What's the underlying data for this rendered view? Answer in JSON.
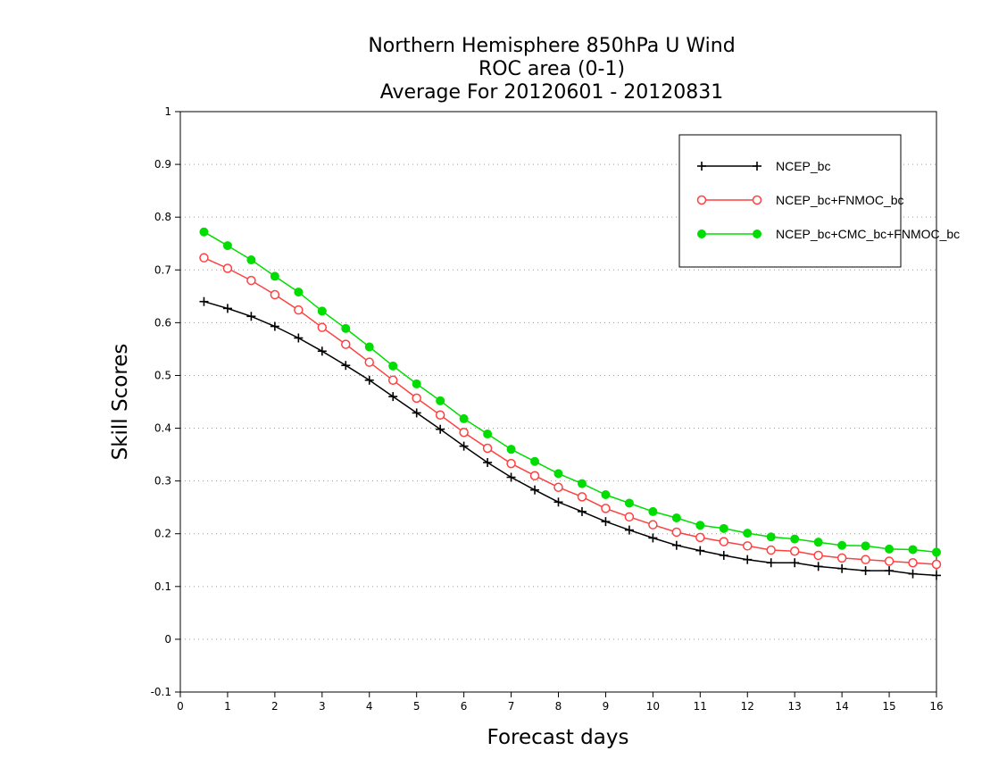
{
  "chart_data": {
    "type": "line",
    "title_lines": [
      "Northern Hemisphere 850hPa U Wind",
      "ROC area (0-1)",
      "Average For 20120601 - 20120831"
    ],
    "xlabel": "Forecast days",
    "ylabel": "Skill Scores",
    "xlim": [
      0,
      16
    ],
    "ylim": [
      -0.1,
      1
    ],
    "x_ticks": [
      "0",
      "1",
      "2",
      "3",
      "4",
      "5",
      "6",
      "7",
      "8",
      "9",
      "10",
      "11",
      "12",
      "13",
      "14",
      "15",
      "16"
    ],
    "y_ticks": [
      "-0.1",
      "0",
      "0.1",
      "0.2",
      "0.3",
      "0.4",
      "0.5",
      "0.6",
      "0.7",
      "0.8",
      "0.9",
      "1"
    ],
    "grid": "horizontal dotted",
    "legend_position": "top-right",
    "x": [
      0.5,
      1,
      1.5,
      2,
      2.5,
      3,
      3.5,
      4,
      4.5,
      5,
      5.5,
      6,
      6.5,
      7,
      7.5,
      8,
      8.5,
      9,
      9.5,
      10,
      10.5,
      11,
      11.5,
      12,
      12.5,
      13,
      13.5,
      14,
      14.5,
      15,
      15.5,
      16
    ],
    "series": [
      {
        "name": "NCEP_bc",
        "color": "#000000",
        "marker": "plus",
        "values": [
          0.64,
          0.627,
          0.612,
          0.593,
          0.571,
          0.546,
          0.519,
          0.491,
          0.46,
          0.429,
          0.398,
          0.366,
          0.335,
          0.307,
          0.283,
          0.26,
          0.242,
          0.223,
          0.207,
          0.192,
          0.178,
          0.168,
          0.159,
          0.151,
          0.145,
          0.145,
          0.138,
          0.134,
          0.13,
          0.13,
          0.124,
          0.121
        ]
      },
      {
        "name": "NCEP_bc+FNMOC_bc",
        "color": "#ff4040",
        "marker": "open-circle",
        "values": [
          0.723,
          0.703,
          0.68,
          0.653,
          0.624,
          0.591,
          0.559,
          0.525,
          0.491,
          0.457,
          0.425,
          0.392,
          0.362,
          0.333,
          0.31,
          0.288,
          0.27,
          0.248,
          0.232,
          0.217,
          0.203,
          0.193,
          0.185,
          0.177,
          0.169,
          0.167,
          0.159,
          0.154,
          0.151,
          0.148,
          0.145,
          0.142
        ]
      },
      {
        "name": "NCEP_bc+CMC_bc+FNMOC_bc",
        "color": "#00dd00",
        "marker": "filled-circle",
        "values": [
          0.772,
          0.746,
          0.719,
          0.688,
          0.658,
          0.622,
          0.589,
          0.554,
          0.518,
          0.484,
          0.452,
          0.418,
          0.389,
          0.36,
          0.337,
          0.314,
          0.295,
          0.274,
          0.258,
          0.242,
          0.23,
          0.216,
          0.21,
          0.201,
          0.194,
          0.19,
          0.184,
          0.178,
          0.177,
          0.171,
          0.17,
          0.165
        ]
      }
    ]
  }
}
